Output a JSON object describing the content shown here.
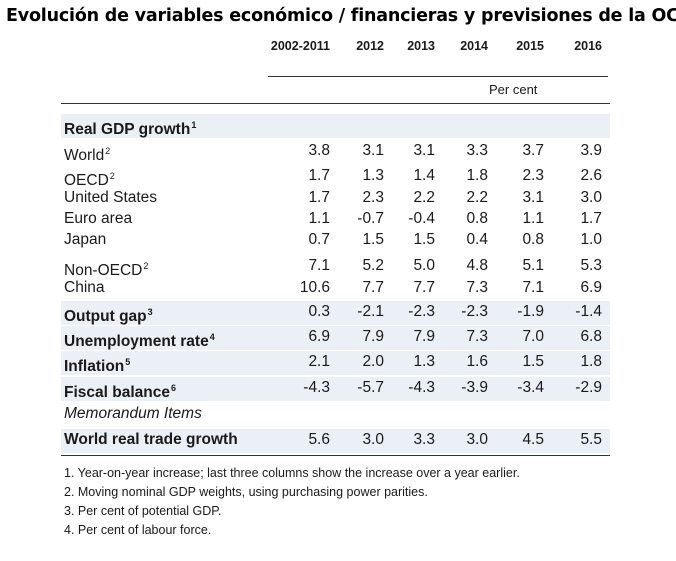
{
  "title": "Evolución de variables económico / financieras y previsiones de la OCDE",
  "columns": [
    "2002-2011",
    "2012",
    "2013",
    "2014",
    "2015",
    "2016"
  ],
  "unit_label": "Per cent",
  "rows": [
    {
      "label": "Real GDP growth",
      "sup": "1",
      "style": "bold",
      "values": []
    },
    {
      "label": "World",
      "sup": "2",
      "style": "normal",
      "values": [
        "3.8",
        "3.1",
        "3.1",
        "3.3",
        "3.7",
        "3.9"
      ]
    },
    {
      "label": "OECD",
      "sup": "2",
      "style": "normal",
      "values": [
        "1.7",
        "1.3",
        "1.4",
        "1.8",
        "2.3",
        "2.6"
      ]
    },
    {
      "label": "United States",
      "sup": "",
      "style": "normal",
      "values": [
        "1.7",
        "2.3",
        "2.2",
        "2.2",
        "3.1",
        "3.0"
      ]
    },
    {
      "label": "Euro area",
      "sup": "",
      "style": "normal",
      "values": [
        "1.1",
        "-0.7",
        "-0.4",
        "0.8",
        "1.1",
        "1.7"
      ]
    },
    {
      "label": "Japan",
      "sup": "",
      "style": "normal",
      "values": [
        "0.7",
        "1.5",
        "1.5",
        "0.4",
        "0.8",
        "1.0"
      ]
    },
    {
      "label": "Non-OECD",
      "sup": "2",
      "style": "normal",
      "values": [
        "7.1",
        "5.2",
        "5.0",
        "4.8",
        "5.1",
        "5.3"
      ]
    },
    {
      "label": "China",
      "sup": "",
      "style": "normal",
      "values": [
        "10.6",
        "7.7",
        "7.7",
        "7.3",
        "7.1",
        "6.9"
      ]
    },
    {
      "label": "Output gap",
      "sup": "3",
      "style": "bold",
      "values": [
        "0.3",
        "-2.1",
        "-2.3",
        "-2.3",
        "-1.9",
        "-1.4"
      ]
    },
    {
      "label": "Unemployment rate",
      "sup": "4",
      "style": "bold",
      "values": [
        "6.9",
        "7.9",
        "7.9",
        "7.3",
        "7.0",
        "6.8"
      ]
    },
    {
      "label": "Inflation",
      "sup": "5",
      "style": "bold",
      "values": [
        "2.1",
        "2.0",
        "1.3",
        "1.6",
        "1.5",
        "1.8"
      ]
    },
    {
      "label": "Fiscal balance",
      "sup": "6",
      "style": "bold",
      "values": [
        "-4.3",
        "-5.7",
        "-4.3",
        "-3.9",
        "-3.4",
        "-2.9"
      ]
    },
    {
      "label": "Memorandum Items",
      "sup": "",
      "style": "italic",
      "values": []
    },
    {
      "label": "World real trade growth",
      "sup": "",
      "style": "bold",
      "values": [
        "5.6",
        "3.0",
        "3.3",
        "3.0",
        "4.5",
        "5.5"
      ]
    }
  ],
  "footnotes": [
    "1. Year-on-year increase; last three columns show the increase over a year earlier.",
    "2. Moving nominal GDP weights, using purchasing power parities.",
    "3. Per cent of potential GDP.",
    "4. Per cent of labour force."
  ]
}
